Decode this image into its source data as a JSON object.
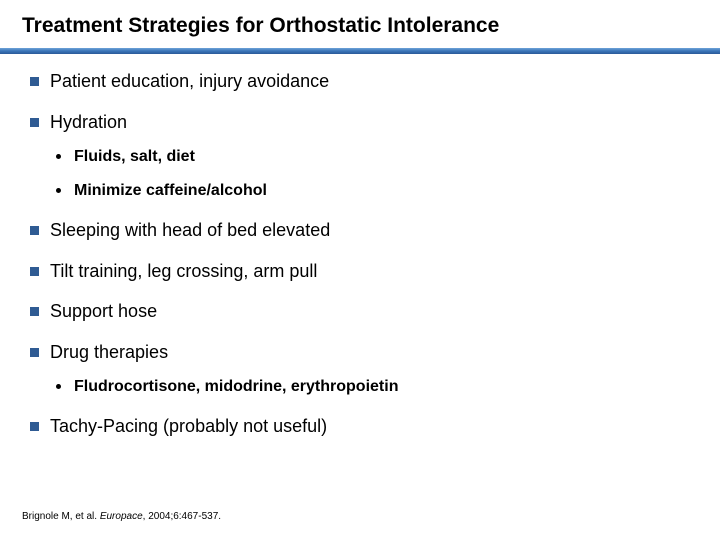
{
  "title": "Treatment Strategies for Orthostatic Intolerance",
  "colors": {
    "square_bullet": "#2f5b93",
    "separator_top": "#6ea3d8",
    "separator_bottom": "#2a5a99",
    "text": "#000000",
    "background": "#ffffff"
  },
  "typography": {
    "title_fontsize": 21,
    "level1_fontsize": 18,
    "level2_fontsize": 16,
    "citation_fontsize": 10,
    "family": "Arial"
  },
  "items": [
    {
      "text": "Patient education, injury avoidance"
    },
    {
      "text": "Hydration",
      "sub": [
        "Fluids, salt, diet",
        "Minimize caffeine/alcohol"
      ]
    },
    {
      "text": "Sleeping with head of bed elevated"
    },
    {
      "text": "Tilt training, leg crossing, arm pull"
    },
    {
      "text": "Support hose"
    },
    {
      "text": "Drug therapies",
      "sub": [
        "Fludrocortisone, midodrine, erythropoietin"
      ]
    },
    {
      "text": "Tachy-Pacing (probably not useful)"
    }
  ],
  "citation": {
    "authors": "Brignole M, et al.",
    "journal": "Europace",
    "rest": ", 2004;6:467-537."
  }
}
